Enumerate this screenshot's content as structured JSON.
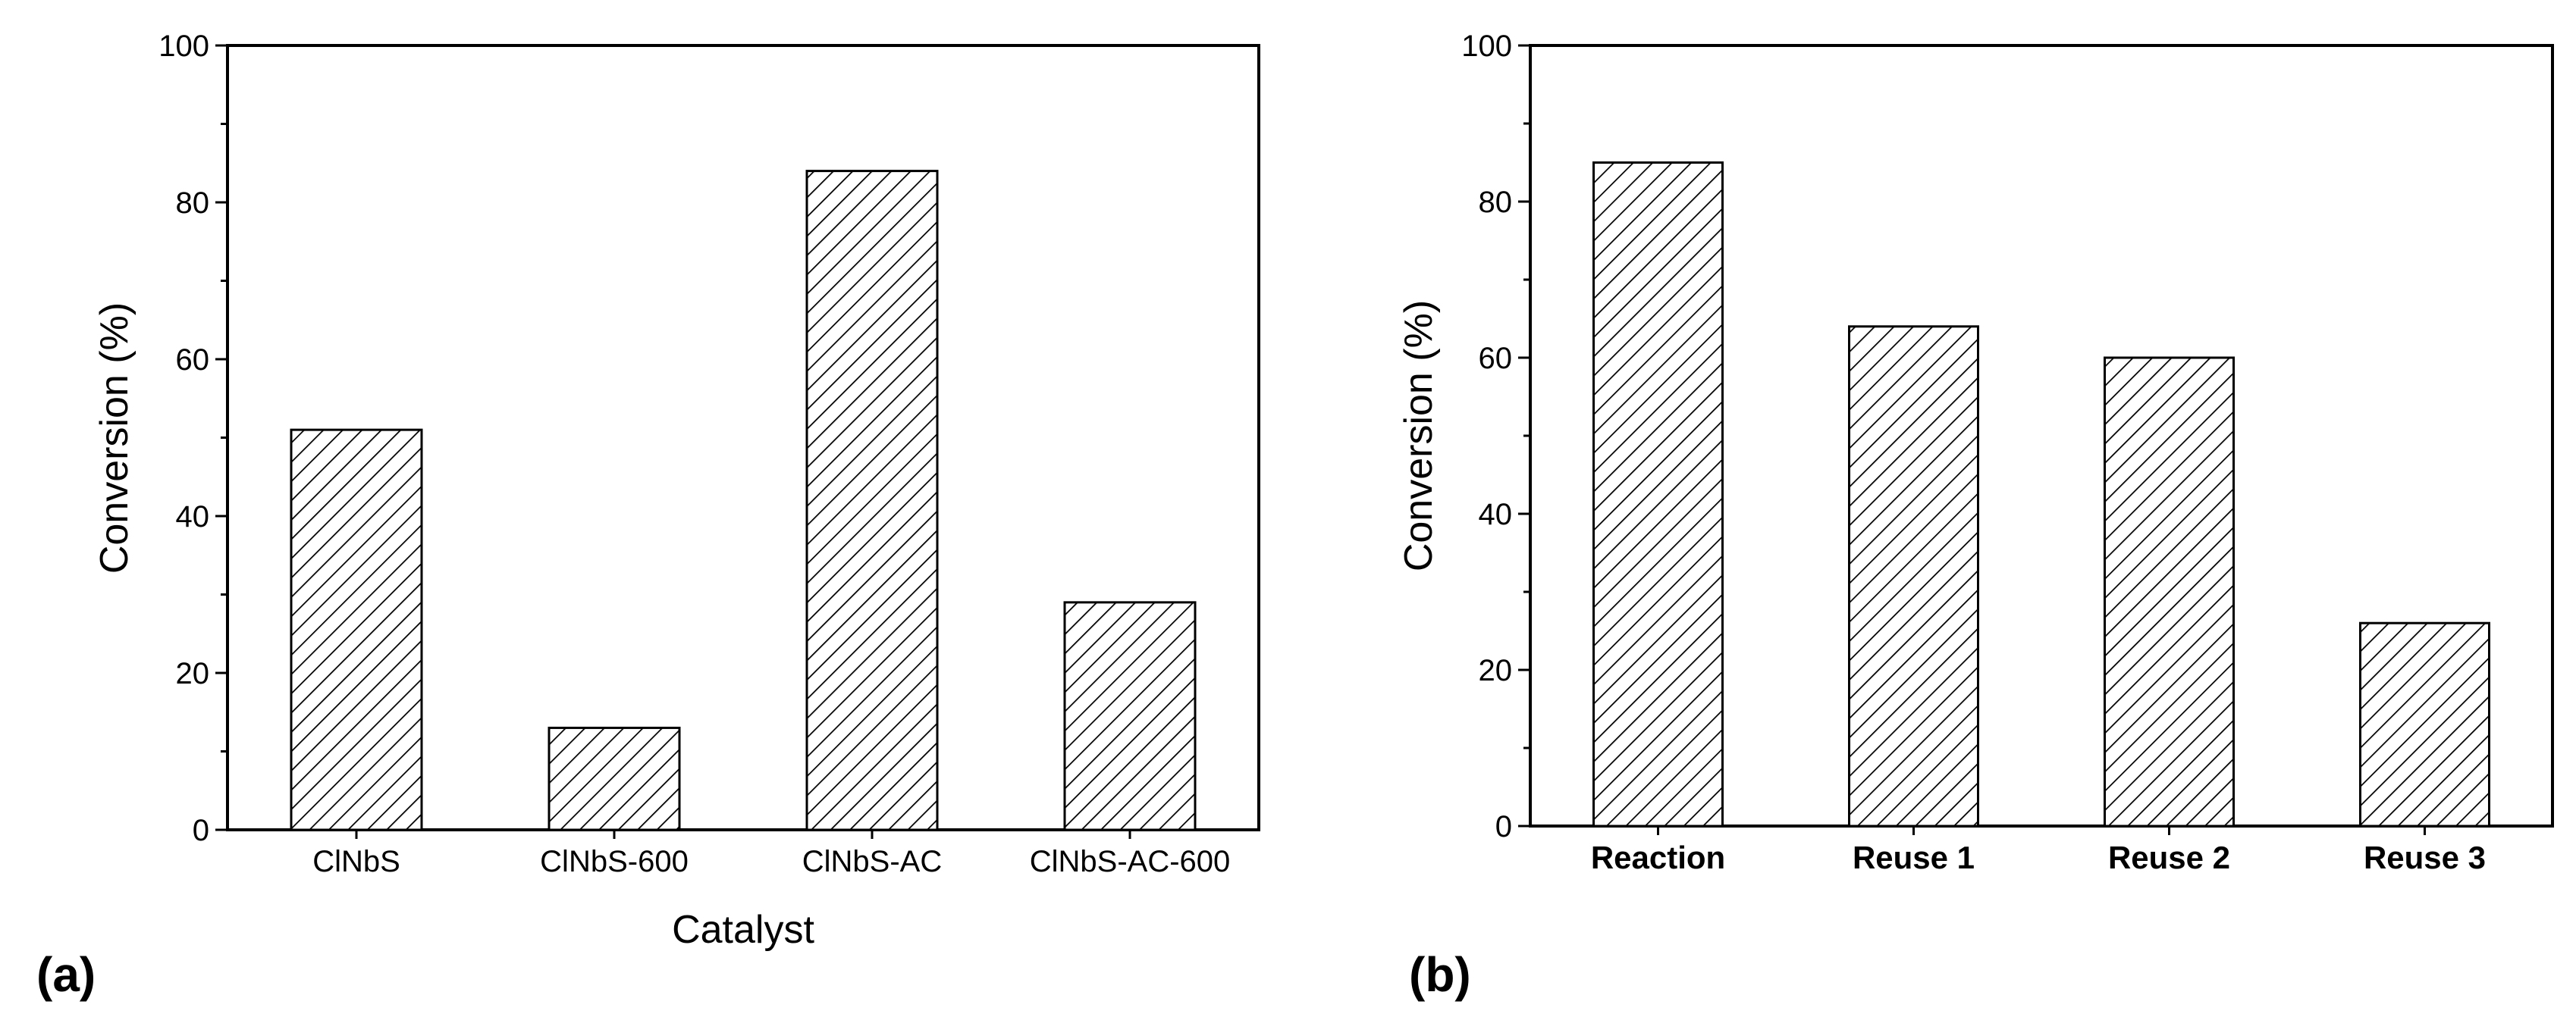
{
  "chart_data": [
    {
      "type": "bar",
      "panel": "(a)",
      "categories": [
        "ClNbS",
        "ClNbS-600",
        "ClNbS-AC",
        "ClNbS-AC-600"
      ],
      "values": [
        51,
        13,
        84,
        29
      ],
      "xlabel": "Catalyst",
      "ylabel": "Conversion (%)",
      "ylim": [
        0,
        100
      ],
      "yticks": [
        0,
        20,
        40,
        60,
        80,
        100
      ],
      "grid": false,
      "bar_fill": "hatched"
    },
    {
      "type": "bar",
      "panel": "(b)",
      "categories": [
        "Reaction",
        "Reuse 1",
        "Reuse 2",
        "Reuse 3"
      ],
      "values": [
        85,
        64,
        60,
        26
      ],
      "xlabel": "",
      "ylabel": "Conversion (%)",
      "ylim": [
        0,
        100
      ],
      "yticks": [
        0,
        20,
        40,
        60,
        80,
        100
      ],
      "grid": false,
      "bar_fill": "hatched"
    }
  ],
  "colors": {
    "ink": "#000000",
    "background": "#ffffff",
    "bar_fill": "#ffffff"
  }
}
